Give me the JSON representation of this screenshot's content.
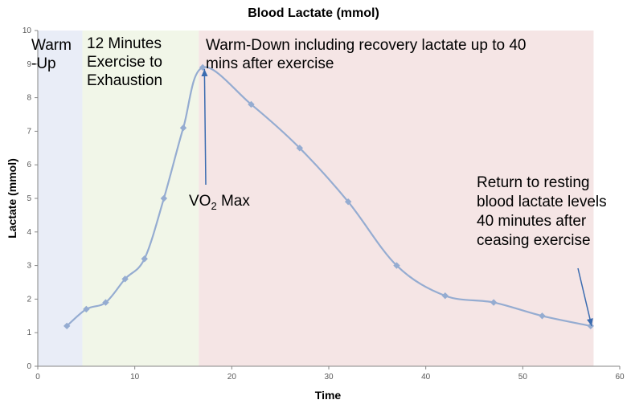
{
  "chart_data": {
    "type": "line",
    "title": "Blood Lactate (mmol)",
    "xlabel": "Time",
    "ylabel": "Lactate (mmol)",
    "xlim": [
      0,
      60
    ],
    "ylim": [
      0,
      10
    ],
    "x_ticks": [
      0,
      10,
      20,
      30,
      40,
      50,
      60
    ],
    "y_ticks": [
      0,
      1,
      2,
      3,
      4,
      5,
      6,
      7,
      8,
      9,
      10
    ],
    "grid": false,
    "series": [
      {
        "name": "Blood Lactate",
        "color": "#95acd1",
        "x": [
          3,
          5,
          7,
          9,
          11,
          13,
          15,
          17,
          22,
          27,
          32,
          37,
          42,
          47,
          52,
          57
        ],
        "y": [
          1.2,
          1.7,
          1.9,
          2.6,
          3.2,
          5.0,
          7.1,
          8.9,
          7.8,
          6.5,
          4.9,
          3.0,
          2.1,
          1.9,
          1.5,
          1.2
        ]
      }
    ],
    "phases": [
      {
        "label_lines": [
          "Warm",
          "-Up"
        ],
        "x_start": 0,
        "x_end": 4.6,
        "color": "#e9edf7"
      },
      {
        "label_lines": [
          "12 Minutes",
          "Exercise to",
          "Exhaustion"
        ],
        "x_start": 4.6,
        "x_end": 16.6,
        "color": "#f1f6e8"
      },
      {
        "label_lines": [
          "Warm-Down including recovery lactate up to 40",
          "mins after exercise"
        ],
        "x_start": 16.6,
        "x_end": 57.3,
        "color": "#f5e5e5"
      }
    ],
    "annotations": [
      {
        "text_main": "VO",
        "text_sub": "2",
        "text_rest": " Max",
        "arrow_tip": [
          17.1,
          8.9
        ]
      },
      {
        "lines": [
          "Return to resting",
          "blood lactate levels",
          "40 minutes after",
          "ceasing exercise"
        ],
        "arrow_tip": [
          57.1,
          1.2
        ]
      }
    ],
    "arrow_color": "#3a6bb0"
  }
}
